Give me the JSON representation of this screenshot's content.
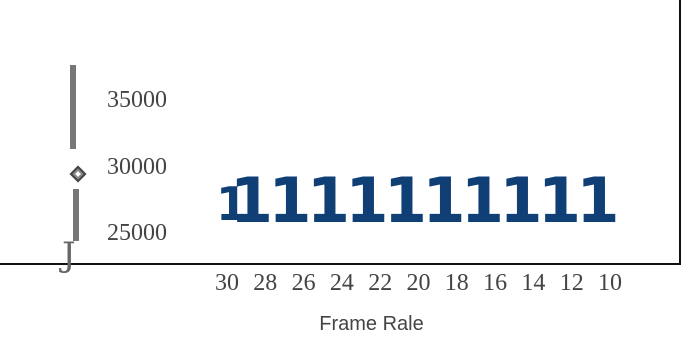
{
  "chart_data": {
    "type": "other",
    "title": "",
    "y_tick_labels": [
      "35000",
      "30000",
      "25000"
    ],
    "x_tick_labels": [
      "30",
      "28",
      "26",
      "24",
      "22",
      "20",
      "18",
      "16",
      "14",
      "12",
      "10"
    ],
    "xlabel": "Frame Rale",
    "bar_glyphs": [
      "1",
      "1",
      "1",
      "1",
      "1",
      "1",
      "1",
      "1",
      "1",
      "1",
      "1"
    ],
    "hook_glyph": "J",
    "colors": {
      "bars": "#0f3f75",
      "text": "#444444",
      "scale": "#777777"
    }
  }
}
